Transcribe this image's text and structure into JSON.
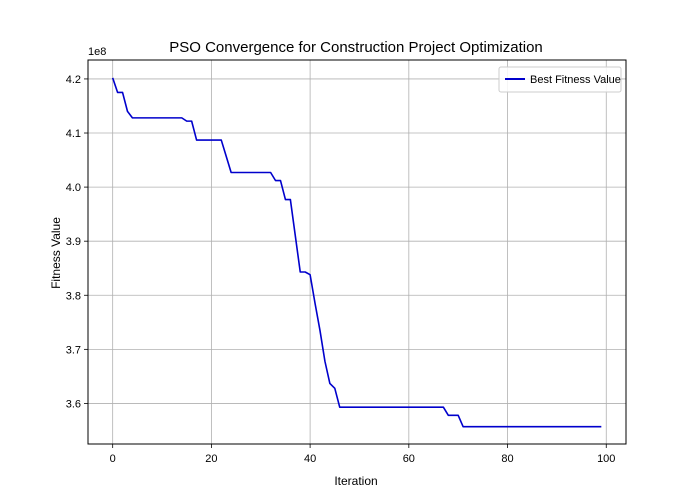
{
  "chart_data": {
    "type": "line",
    "title": "PSO Convergence for Construction Project Optimization",
    "xlabel": "Iteration",
    "ylabel": "Fitness Value",
    "y_offset_label": "1e8",
    "y_scale_factor": 100000000,
    "xlim": [
      -5,
      104
    ],
    "ylim": [
      3.525,
      4.235
    ],
    "x_ticks": [
      0,
      20,
      40,
      60,
      80,
      100
    ],
    "y_ticks": [
      3.6,
      3.7,
      3.8,
      3.9,
      4.0,
      4.1,
      4.2
    ],
    "grid": true,
    "legend_position": "upper-right",
    "series": [
      {
        "name": "Best Fitness Value",
        "color": "#0000cc",
        "x": [
          0,
          1,
          2,
          3,
          4,
          5,
          6,
          7,
          8,
          9,
          10,
          11,
          12,
          13,
          14,
          15,
          16,
          17,
          18,
          19,
          20,
          21,
          22,
          23,
          24,
          25,
          26,
          27,
          28,
          29,
          30,
          31,
          32,
          33,
          34,
          35,
          36,
          37,
          38,
          39,
          40,
          41,
          42,
          43,
          44,
          45,
          46,
          47,
          48,
          49,
          50,
          51,
          52,
          53,
          54,
          55,
          56,
          57,
          58,
          59,
          60,
          61,
          62,
          63,
          64,
          65,
          66,
          67,
          68,
          69,
          70,
          71,
          72,
          73,
          74,
          75,
          76,
          77,
          78,
          79,
          80,
          81,
          82,
          83,
          84,
          85,
          86,
          87,
          88,
          89,
          90,
          91,
          92,
          93,
          94,
          95,
          96,
          97,
          98,
          99
        ],
        "values": [
          4.202,
          4.175,
          4.175,
          4.14,
          4.128,
          4.128,
          4.128,
          4.128,
          4.128,
          4.128,
          4.128,
          4.128,
          4.128,
          4.128,
          4.128,
          4.122,
          4.122,
          4.087,
          4.087,
          4.087,
          4.087,
          4.087,
          4.087,
          4.057,
          4.027,
          4.027,
          4.027,
          4.027,
          4.027,
          4.027,
          4.027,
          4.027,
          4.027,
          4.012,
          4.012,
          3.977,
          3.977,
          3.91,
          3.843,
          3.843,
          3.838,
          3.785,
          3.735,
          3.678,
          3.637,
          3.628,
          3.593,
          3.593,
          3.593,
          3.593,
          3.593,
          3.593,
          3.593,
          3.593,
          3.593,
          3.593,
          3.593,
          3.593,
          3.593,
          3.593,
          3.593,
          3.593,
          3.593,
          3.593,
          3.593,
          3.593,
          3.593,
          3.593,
          3.578,
          3.578,
          3.578,
          3.557,
          3.557,
          3.557,
          3.557,
          3.557,
          3.557,
          3.557,
          3.557,
          3.557,
          3.557,
          3.557,
          3.557,
          3.557,
          3.557,
          3.557,
          3.557,
          3.557,
          3.557,
          3.557,
          3.557,
          3.557,
          3.557,
          3.557,
          3.557,
          3.557,
          3.557,
          3.557,
          3.557,
          3.557
        ]
      }
    ]
  }
}
